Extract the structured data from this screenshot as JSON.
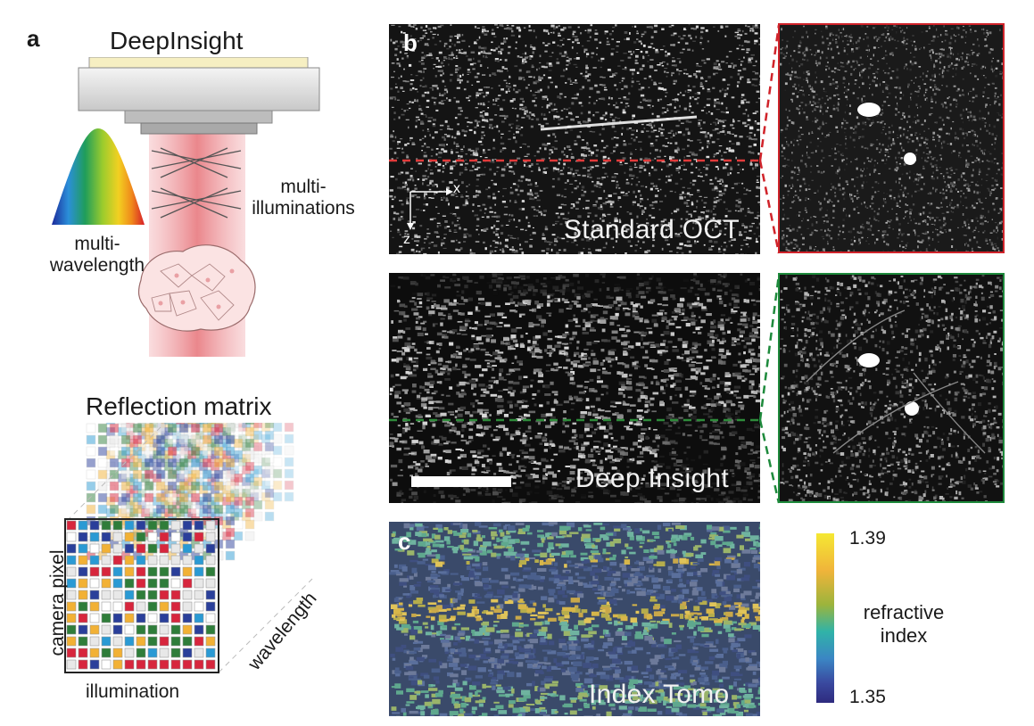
{
  "panel_a": {
    "letter": "a",
    "title": "DeepInsight",
    "label_wavelength": [
      "multi-",
      "wavelength"
    ],
    "label_illum": [
      "multi-",
      "illuminations"
    ],
    "matrix_title": "Reflection matrix",
    "axis_camera": "camera pixel",
    "axis_illumination": "illumination",
    "axis_wavelength": "wavelength"
  },
  "panel_b": {
    "letter": "b",
    "label_oct": "Standard OCT",
    "label_deep": "Deep Insight",
    "axis_x": "x",
    "axis_z": "z"
  },
  "panel_c": {
    "letter": "c",
    "label": "Index Tomo",
    "colorbar_title": [
      "refractive",
      "index"
    ],
    "colorbar_max": "1.39",
    "colorbar_min": "1.35"
  },
  "colors": {
    "oct_line": "#e23a3a",
    "deep_line": "#2e8b3a",
    "red_frame": "#d0232a",
    "green_frame": "#1e8a3c"
  }
}
